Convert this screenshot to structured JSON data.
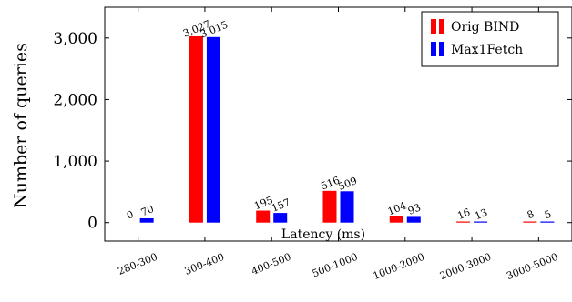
{
  "chart_data": {
    "type": "bar",
    "xlabel": "Latency (ms)",
    "ylabel": "Number of queries",
    "ylim": [
      -300,
      3500
    ],
    "yticks": [
      0,
      1000,
      2000,
      3000
    ],
    "ytick_labels": [
      "0",
      "1,000",
      "2,000",
      "3,000"
    ],
    "grid": false,
    "legend_position": "top-right",
    "categories": [
      "280-300",
      "300-400",
      "400-500",
      "500-1000",
      "1000-2000",
      "2000-3000",
      "3000-5000"
    ],
    "series": [
      {
        "name": "Orig BIND",
        "color": "#ff0000",
        "values": [
          0,
          3027,
          195,
          516,
          104,
          16,
          8
        ],
        "labels": [
          "0",
          "3,027",
          "195",
          "516",
          "104",
          "16",
          "8"
        ]
      },
      {
        "name": "Max1Fetch",
        "color": "#0000ff",
        "values": [
          70,
          3015,
          157,
          509,
          93,
          13,
          5
        ],
        "labels": [
          "70",
          "3,015",
          "157",
          "509",
          "93",
          "13",
          "5"
        ]
      }
    ]
  }
}
